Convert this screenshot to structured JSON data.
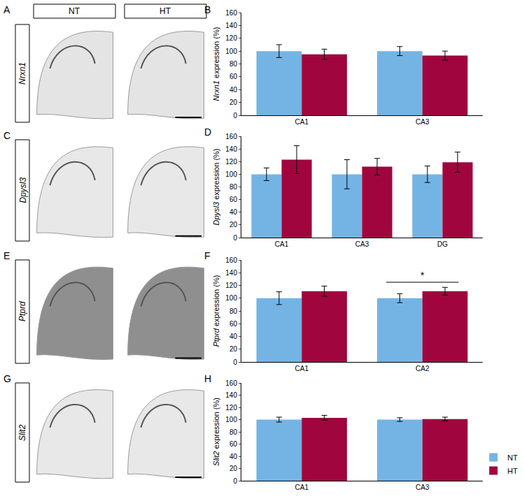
{
  "column_heads": [
    "NT",
    "HT"
  ],
  "image_panels": [
    {
      "letter": "A",
      "gene": "Nrxn1"
    },
    {
      "letter": "C",
      "gene": "Dpysl3"
    },
    {
      "letter": "E",
      "gene": "Ptprd"
    },
    {
      "letter": "G",
      "gene": "Slit2"
    }
  ],
  "chart_data": [
    {
      "type": "bar",
      "panel": "B",
      "y_label": "Nrxn1 expression (%)",
      "categories": [
        "CA1",
        "CA3"
      ],
      "series": [
        {
          "name": "NT",
          "color": "#74b4e4",
          "values": [
            100,
            100
          ],
          "errors": [
            10,
            7
          ]
        },
        {
          "name": "HT",
          "color": "#a0063d",
          "values": [
            95,
            93
          ],
          "errors": [
            8,
            7
          ]
        }
      ],
      "ylim": [
        0,
        160
      ],
      "yticks": [
        0,
        20,
        40,
        60,
        80,
        100,
        120,
        140,
        160
      ],
      "grid": false
    },
    {
      "type": "bar",
      "panel": "D",
      "y_label": "Dpysl3 expression (%)",
      "categories": [
        "CA1",
        "CA3",
        "DG"
      ],
      "series": [
        {
          "name": "NT",
          "color": "#74b4e4",
          "values": [
            100,
            100,
            100
          ],
          "errors": [
            10,
            23,
            13
          ]
        },
        {
          "name": "HT",
          "color": "#a0063d",
          "values": [
            123,
            112,
            119
          ],
          "errors": [
            22,
            13,
            16
          ]
        }
      ],
      "ylim": [
        0,
        160
      ],
      "yticks": [
        0,
        20,
        40,
        60,
        80,
        100,
        120,
        140,
        160
      ],
      "grid": false
    },
    {
      "type": "bar",
      "panel": "F",
      "y_label": "Ptprd expression (%)",
      "categories": [
        "CA1",
        "CA2"
      ],
      "series": [
        {
          "name": "NT",
          "color": "#74b4e4",
          "values": [
            100,
            100
          ],
          "errors": [
            10,
            7
          ]
        },
        {
          "name": "HT",
          "color": "#a0063d",
          "values": [
            111,
            111
          ],
          "errors": [
            8,
            6
          ]
        }
      ],
      "ylim": [
        0,
        160
      ],
      "yticks": [
        0,
        20,
        40,
        60,
        80,
        100,
        120,
        140,
        160
      ],
      "grid": false,
      "annotations": [
        {
          "text": "*",
          "category": "CA2"
        }
      ]
    },
    {
      "type": "bar",
      "panel": "H",
      "y_label": "Slit2 expression (%)",
      "categories": [
        "CA1",
        "CA3"
      ],
      "series": [
        {
          "name": "NT",
          "color": "#74b4e4",
          "values": [
            100,
            100
          ],
          "errors": [
            4,
            3
          ]
        },
        {
          "name": "HT",
          "color": "#a0063d",
          "values": [
            103,
            101
          ],
          "errors": [
            4,
            3
          ]
        }
      ],
      "ylim": [
        0,
        160
      ],
      "yticks": [
        0,
        20,
        40,
        60,
        80,
        100,
        120,
        140,
        160
      ],
      "grid": false,
      "legend": "lower right"
    }
  ]
}
